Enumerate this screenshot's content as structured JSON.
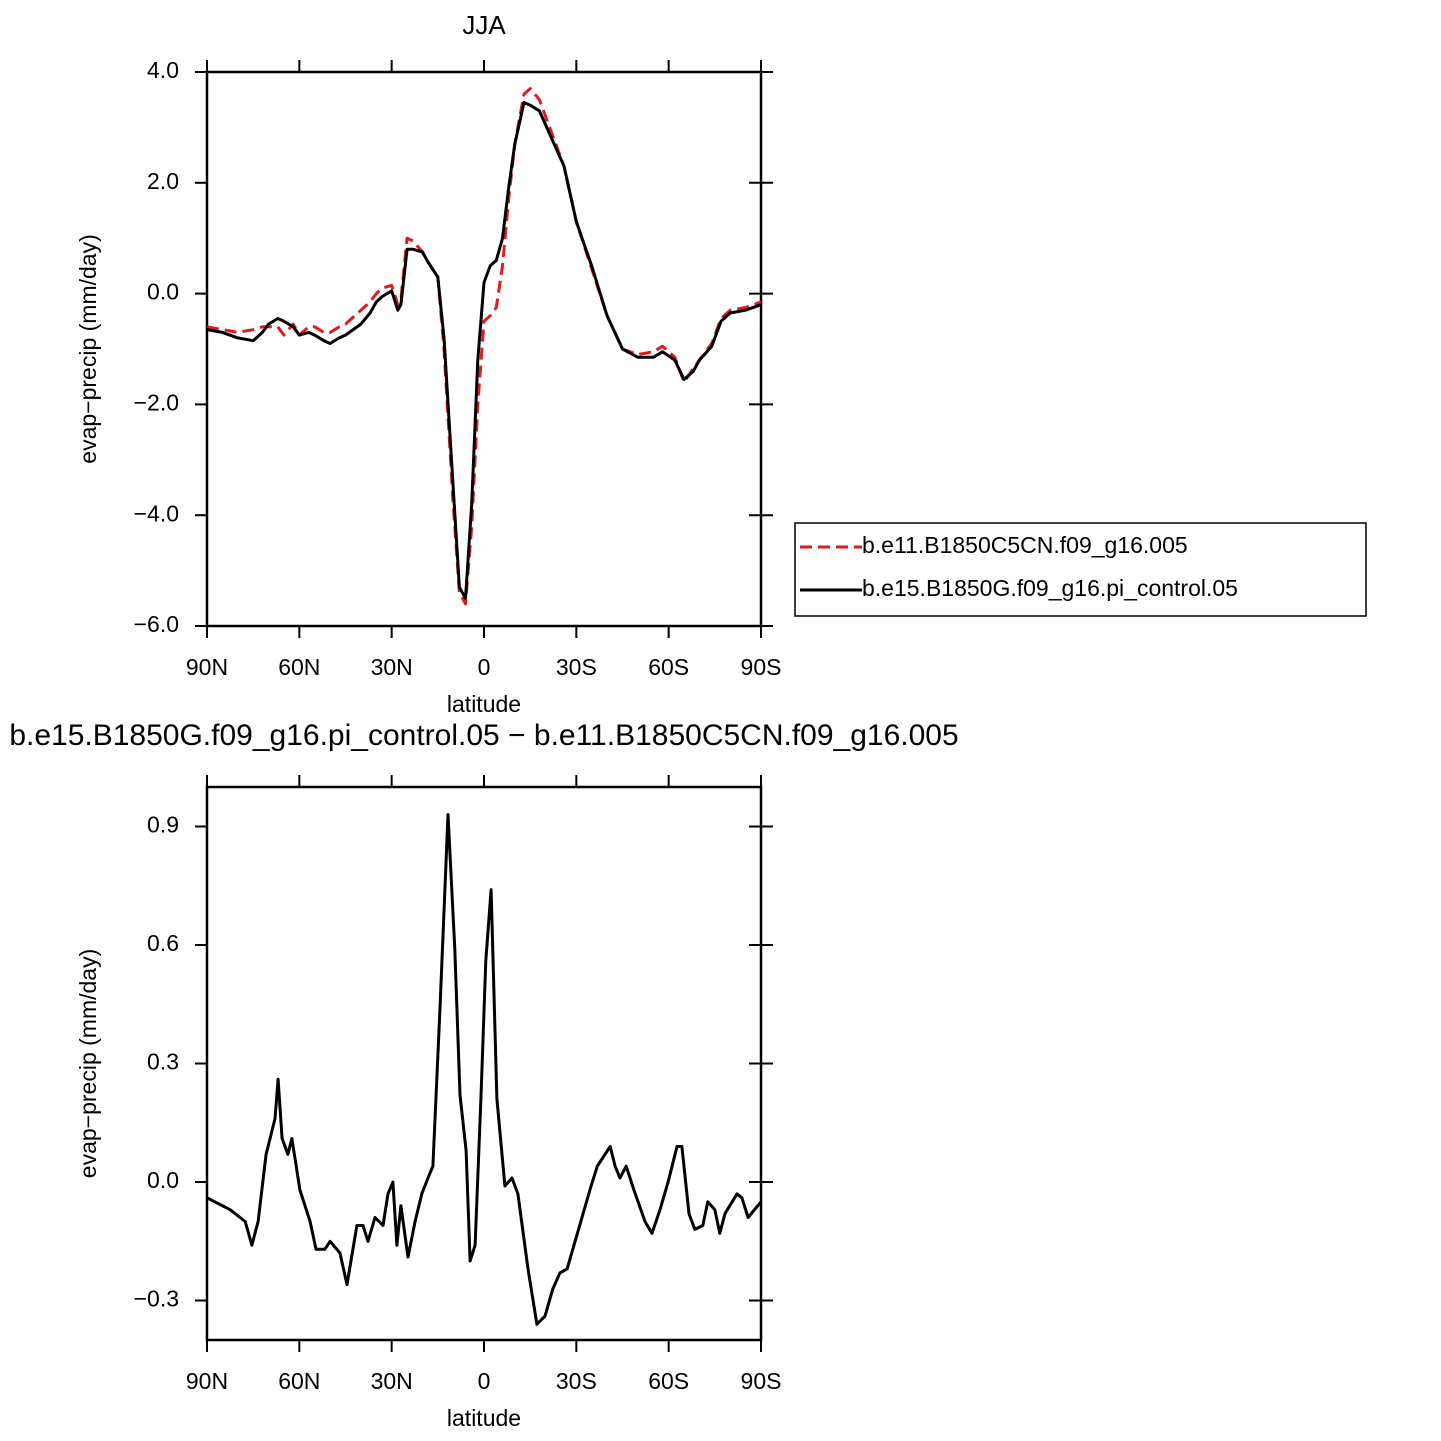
{
  "chart_data": [
    {
      "type": "line",
      "title": "JJA",
      "xlabel": "latitude",
      "ylabel": "evap−precip (mm/day)",
      "x": [
        90,
        85,
        80,
        75,
        72,
        70,
        67,
        65,
        62,
        60,
        57,
        55,
        52,
        50,
        47,
        45,
        40,
        37,
        35,
        33,
        30,
        28,
        27,
        25,
        23,
        20,
        18,
        15,
        13,
        10,
        8,
        6,
        4,
        2,
        0,
        -2,
        -4,
        -6,
        -8,
        -10,
        -13,
        -15,
        -18,
        -22,
        -26,
        -30,
        -35,
        -40,
        -45,
        -50,
        -55,
        -58,
        -62,
        -65,
        -68,
        -70,
        -74,
        -77,
        -80,
        -85,
        -90
      ],
      "series": [
        {
          "name": "b.e11.B1850C5CN.f09_g16.005",
          "color": "#e31a1c",
          "dash": "dashed",
          "values": [
            -0.6,
            -0.65,
            -0.7,
            -0.65,
            -0.6,
            -0.6,
            -0.6,
            -0.75,
            -0.55,
            -0.75,
            -0.6,
            -0.6,
            -0.7,
            -0.7,
            -0.6,
            -0.55,
            -0.3,
            -0.15,
            0.0,
            0.1,
            0.15,
            -0.2,
            -0.1,
            1.0,
            0.95,
            0.75,
            0.55,
            0.3,
            -1.0,
            -3.8,
            -5.4,
            -5.6,
            -4.2,
            -2.0,
            -0.5,
            -0.4,
            -0.25,
            0.5,
            1.7,
            2.7,
            3.6,
            3.7,
            3.5,
            2.9,
            2.3,
            1.3,
            0.45,
            -0.4,
            -1.0,
            -1.1,
            -1.05,
            -0.95,
            -1.15,
            -1.6,
            -1.35,
            -1.2,
            -0.9,
            -0.45,
            -0.3,
            -0.25,
            -0.15
          ]
        },
        {
          "name": "b.e15.B1850G.f09_g16.pi_control.05",
          "color": "#000000",
          "dash": "solid",
          "values": [
            -0.65,
            -0.7,
            -0.8,
            -0.85,
            -0.7,
            -0.55,
            -0.45,
            -0.5,
            -0.6,
            -0.75,
            -0.7,
            -0.75,
            -0.85,
            -0.9,
            -0.8,
            -0.75,
            -0.55,
            -0.35,
            -0.15,
            -0.05,
            0.05,
            -0.3,
            -0.2,
            0.8,
            0.8,
            0.75,
            0.55,
            0.3,
            -0.8,
            -3.5,
            -5.3,
            -5.5,
            -3.8,
            -1.2,
            0.2,
            0.5,
            0.6,
            1.0,
            1.9,
            2.7,
            3.45,
            3.4,
            3.3,
            2.8,
            2.3,
            1.3,
            0.5,
            -0.4,
            -1.0,
            -1.15,
            -1.15,
            -1.05,
            -1.2,
            -1.55,
            -1.4,
            -1.2,
            -0.95,
            -0.5,
            -0.35,
            -0.3,
            -0.2
          ]
        }
      ],
      "xlim": [
        90,
        -90
      ],
      "xticks": [
        {
          "value": 90,
          "label": "90N"
        },
        {
          "value": 60,
          "label": "60N"
        },
        {
          "value": 30,
          "label": "30N"
        },
        0,
        {
          "value": -30,
          "label": "30S"
        },
        {
          "value": -60,
          "label": "60S"
        },
        {
          "value": -90,
          "label": "90S"
        }
      ],
      "ylim": [
        -6,
        4
      ],
      "yticks": [
        {
          "value": -6,
          "label": "−6.0"
        },
        {
          "value": -4,
          "label": "−4.0"
        },
        {
          "value": -2,
          "label": "−2.0"
        },
        {
          "value": 0,
          "label": "0.0"
        },
        {
          "value": 2,
          "label": "2.0"
        },
        {
          "value": 4,
          "label": "4.0"
        }
      ],
      "legend": "outside-right"
    },
    {
      "type": "line",
      "title": "b.e15.B1850G.f09_g16.pi_control.05 − b.e11.B1850C5CN.f09_g16.005",
      "xlabel": "latitude",
      "ylabel": "evap−precip (mm/day)",
      "x": [
        90,
        82.5,
        77.6,
        75.4,
        73.4,
        70.8,
        67.9,
        66.9,
        65.6,
        63.7,
        62.4,
        59.8,
        56.5,
        54.6,
        51.7,
        50,
        46.8,
        44.5,
        41.3,
        39.3,
        37.7,
        35.4,
        32.8,
        31.2,
        29.6,
        28.3,
        27,
        24.7,
        22.4,
        20.2,
        18.2,
        16.6,
        14.3,
        11.7,
        9.5,
        7.8,
        5.8,
        4.5,
        2.9,
        1,
        -0.6,
        -2.3,
        -4.2,
        -6.8,
        -9.1,
        -11,
        -14.3,
        -17.2,
        -19.8,
        -22.4,
        -24.7,
        -27,
        -29.6,
        -32.2,
        -34.8,
        -36.8,
        -39.3,
        -41,
        -42.6,
        -44.2,
        -46.2,
        -48.7,
        -52.3,
        -54.6,
        -57.2,
        -59.8,
        -62.7,
        -64.3,
        -66.6,
        -68.5,
        -71.1,
        -72.7,
        -75,
        -76.6,
        -78.3,
        -82.2,
        -83.8,
        -85.8,
        -90
      ],
      "values": [
        -0.04,
        -0.07,
        -0.1,
        -0.16,
        -0.1,
        0.07,
        0.16,
        0.26,
        0.11,
        0.07,
        0.11,
        -0.02,
        -0.1,
        -0.17,
        -0.17,
        -0.15,
        -0.18,
        -0.26,
        -0.11,
        -0.11,
        -0.15,
        -0.09,
        -0.11,
        -0.03,
        0.0,
        -0.16,
        -0.06,
        -0.19,
        -0.1,
        -0.03,
        0.01,
        0.04,
        0.44,
        0.93,
        0.59,
        0.22,
        0.08,
        -0.2,
        -0.16,
        0.21,
        0.56,
        0.74,
        0.21,
        -0.01,
        0.01,
        -0.03,
        -0.22,
        -0.36,
        -0.34,
        -0.27,
        -0.23,
        -0.22,
        -0.15,
        -0.08,
        -0.01,
        0.04,
        0.07,
        0.09,
        0.04,
        0.01,
        0.04,
        -0.02,
        -0.1,
        -0.13,
        -0.07,
        0.0,
        0.09,
        0.09,
        -0.08,
        -0.12,
        -0.11,
        -0.05,
        -0.07,
        -0.13,
        -0.08,
        -0.03,
        -0.04,
        -0.09,
        -0.05
      ],
      "color": "#000000",
      "xlim": [
        90,
        -90
      ],
      "xticks": [
        {
          "value": 90,
          "label": "90N"
        },
        {
          "value": 60,
          "label": "60N"
        },
        {
          "value": 30,
          "label": "30N"
        },
        0,
        {
          "value": -30,
          "label": "30S"
        },
        {
          "value": -60,
          "label": "60S"
        },
        {
          "value": -90,
          "label": "90S"
        }
      ],
      "ylim": [
        -0.4,
        1.0
      ],
      "yticks": [
        {
          "value": -0.3,
          "label": "−0.3"
        },
        {
          "value": 0,
          "label": "0.0"
        },
        {
          "value": 0.3,
          "label": "0.3"
        },
        {
          "value": 0.6,
          "label": "0.6"
        },
        {
          "value": 0.9,
          "label": "0.9"
        }
      ]
    }
  ]
}
